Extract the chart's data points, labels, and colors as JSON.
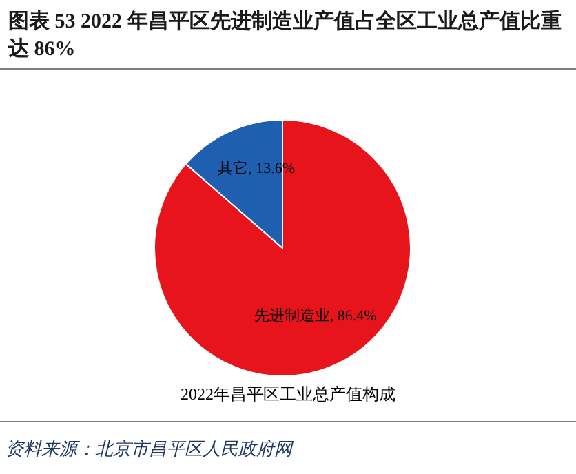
{
  "chart_data": {
    "type": "pie",
    "title": "图表 53  2022 年昌平区先进制造业产值占全区工业总产值比重达 86%",
    "categories": [
      "先进制造业",
      "其它"
    ],
    "values": [
      86.4,
      13.6
    ],
    "colors": [
      "#e8141c",
      "#1f5fb0"
    ],
    "value_labels": [
      "86.4%",
      "13.6%"
    ],
    "annotations": [
      "2022年昌平区工业总产值构成",
      "资料来源：北京市昌平区人民政府网"
    ]
  }
}
